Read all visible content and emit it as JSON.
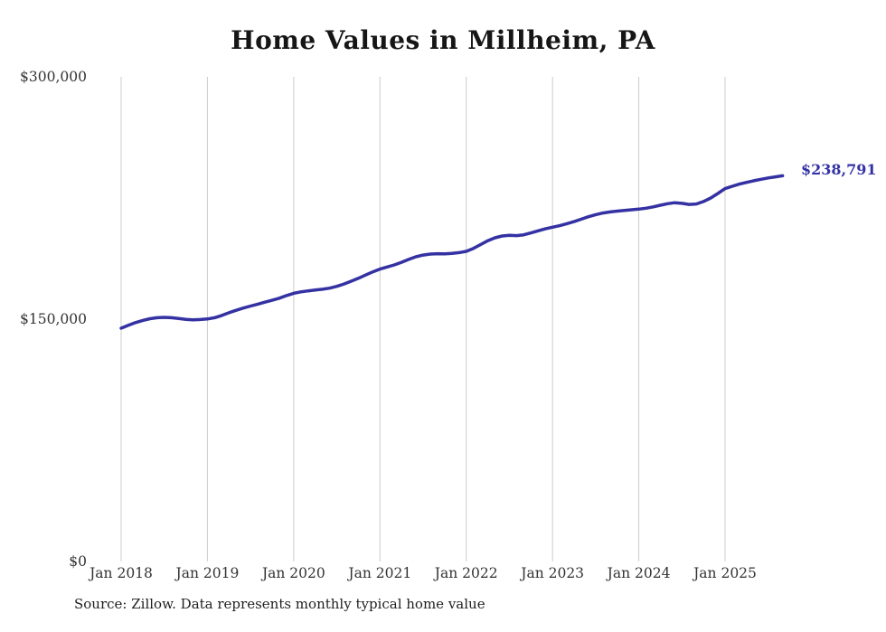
{
  "title": "Home Values in Millheim, PA",
  "end_label": "$238,791",
  "source_note": "Source: Zillow. Data represents monthly typical home value",
  "colors": {
    "line": "#3432a3",
    "grid": "#cccccc",
    "annotation": "#3432a3"
  },
  "chart_data": {
    "type": "line",
    "title": "Home Values in Millheim, PA",
    "xlabel": "",
    "ylabel": "",
    "ylim": [
      0,
      300000
    ],
    "grid": "vertical-only",
    "legend": "none",
    "series_name": "Typical home value",
    "frequency": "monthly",
    "start": "Jan 2018",
    "end": "Sep 2025",
    "latest_value": 238791,
    "yticks": [
      {
        "value": 0,
        "label": "$0"
      },
      {
        "value": 150000,
        "label": "$150,000"
      },
      {
        "value": 300000,
        "label": "$300,000"
      }
    ],
    "xticks": [
      {
        "month_index": 0,
        "label": "Jan 2018"
      },
      {
        "month_index": 12,
        "label": "Jan 2019"
      },
      {
        "month_index": 24,
        "label": "Jan 2020"
      },
      {
        "month_index": 36,
        "label": "Jan 2021"
      },
      {
        "month_index": 48,
        "label": "Jan 2022"
      },
      {
        "month_index": 60,
        "label": "Jan 2023"
      },
      {
        "month_index": 72,
        "label": "Jan 2024"
      },
      {
        "month_index": 84,
        "label": "Jan 2025"
      }
    ],
    "values": [
      144400,
      146200,
      147900,
      149200,
      150300,
      150900,
      151100,
      150900,
      150400,
      149900,
      149600,
      149800,
      150100,
      150900,
      152300,
      154000,
      155500,
      156900,
      158100,
      159300,
      160500,
      161700,
      163000,
      164600,
      166000,
      166900,
      167500,
      168000,
      168500,
      169200,
      170300,
      171800,
      173500,
      175300,
      177300,
      179300,
      181000,
      182300,
      183600,
      185200,
      187000,
      188600,
      189700,
      190300,
      190500,
      190400,
      190700,
      191200,
      192000,
      193800,
      196200,
      198600,
      200400,
      201500,
      201900,
      201700,
      202200,
      203400,
      204700,
      205900,
      206900,
      207900,
      209100,
      210400,
      211900,
      213400,
      214700,
      215700,
      216400,
      216900,
      217300,
      217700,
      218100,
      218700,
      219500,
      220500,
      221500,
      222100,
      221700,
      221000,
      221300,
      222800,
      225000,
      227800,
      230800,
      232300,
      233600,
      234700,
      235700,
      236600,
      237400,
      238100,
      238791
    ]
  }
}
